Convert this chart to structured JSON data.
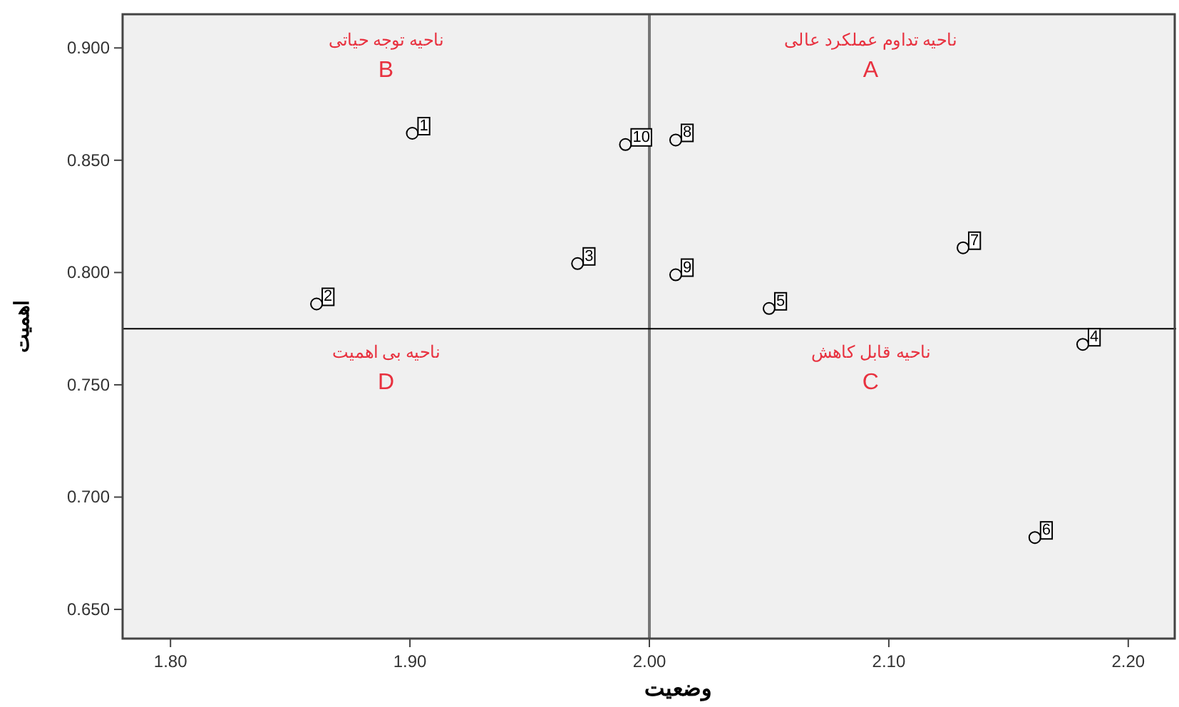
{
  "chart_data": {
    "type": "scatter",
    "xlabel": "وضعیت",
    "ylabel": "اهمیت",
    "x": [
      1.901,
      1.861,
      1.97,
      2.181,
      2.05,
      2.161,
      2.131,
      2.011,
      2.011,
      1.99
    ],
    "values": [
      0.862,
      0.786,
      0.804,
      0.768,
      0.784,
      0.682,
      0.811,
      0.859,
      0.799,
      0.857
    ],
    "color": "#000000",
    "marker": "circle",
    "xlim": [
      1.78,
      2.22
    ],
    "ylim": [
      0.637,
      0.915
    ],
    "xticks": [
      {
        "value": 1.8,
        "label": "1.80"
      },
      {
        "value": 1.9,
        "label": "1.90"
      },
      {
        "value": 2.0,
        "label": "2.00"
      },
      {
        "value": 2.1,
        "label": "2.10"
      },
      {
        "value": 2.2,
        "label": "2.20"
      }
    ],
    "yticks": [
      {
        "value": 0.65,
        "label": "0.650"
      },
      {
        "value": 0.7,
        "label": "0.700"
      },
      {
        "value": 0.75,
        "label": "0.750"
      },
      {
        "value": 0.8,
        "label": "0.800"
      },
      {
        "value": 0.85,
        "label": "0.850"
      },
      {
        "value": 0.9,
        "label": "0.900"
      }
    ],
    "ref_lines": [
      {
        "axis": "x",
        "value": 2.0,
        "color": "#777777"
      },
      {
        "axis": "y",
        "value": 0.775,
        "color": "#000000"
      }
    ],
    "annotations": [
      "ناحیه توجه حیاتی",
      "B",
      "ناحیه تداوم عملکرد عالی",
      "A",
      "ناحیه بی اهمیت",
      "D",
      "ناحیه قابل کاهش",
      "C",
      {
        "text": "1",
        "x": 1.901,
        "y": 0.862
      },
      {
        "text": "2",
        "x": 1.861,
        "y": 0.786
      },
      {
        "text": "3",
        "x": 1.97,
        "y": 0.804
      },
      {
        "text": "4",
        "x": 2.181,
        "y": 0.768
      },
      {
        "text": "5",
        "x": 2.05,
        "y": 0.784
      },
      {
        "text": "6",
        "x": 2.161,
        "y": 0.682
      },
      {
        "text": "7",
        "x": 2.131,
        "y": 0.811
      },
      {
        "text": "8",
        "x": 2.011,
        "y": 0.859
      },
      {
        "text": "9",
        "x": 2.011,
        "y": 0.799
      },
      {
        "text": "10",
        "x": 1.99,
        "y": 0.857
      }
    ],
    "grid": false
  }
}
